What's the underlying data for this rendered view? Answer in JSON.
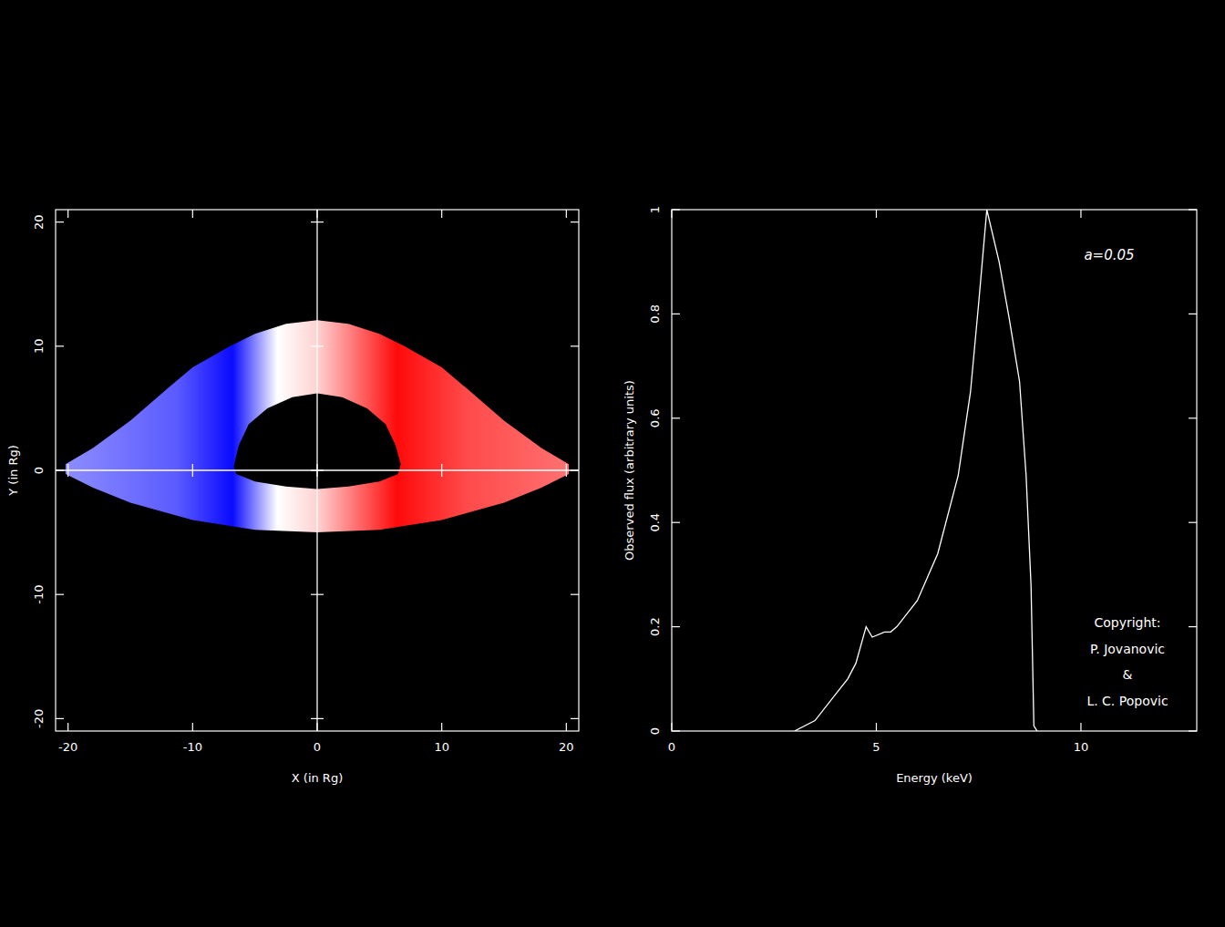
{
  "chart_data": [
    {
      "type": "image",
      "xlabel": "X (in Rg)",
      "ylabel": "Y (in Rg)",
      "xlim": [
        -21,
        21
      ],
      "ylim": [
        -21,
        21
      ],
      "xticks": [
        -20,
        -10,
        0,
        10,
        20
      ],
      "yticks": [
        -20,
        -10,
        0,
        10,
        20
      ],
      "disk": {
        "outer": {
          "x": [
            -20.2,
            -18,
            -15,
            -12,
            -10,
            -7,
            -5,
            -2.5,
            0,
            2.5,
            5,
            7,
            10,
            12,
            15,
            18,
            20.2,
            20.2,
            18,
            15,
            10,
            5,
            0,
            -5,
            -10,
            -15,
            -18,
            -20.2
          ],
          "y": [
            0.5,
            1.8,
            4,
            6.6,
            8.3,
            10,
            11,
            11.8,
            12.1,
            11.8,
            11,
            10,
            8.3,
            6.6,
            4,
            1.8,
            0.5,
            -0.3,
            -1.4,
            -2.6,
            -4,
            -4.8,
            -5,
            -4.8,
            -4,
            -2.6,
            -1.4,
            -0.3
          ]
        },
        "inner": {
          "x": [
            -6.7,
            -6.3,
            -5.5,
            -4,
            -2,
            0,
            2,
            4,
            5.5,
            6.3,
            6.7,
            6.5,
            5,
            2.5,
            0,
            -2.5,
            -5,
            -6.5
          ],
          "y": [
            0.3,
            2,
            3.7,
            5,
            5.9,
            6.2,
            5.9,
            5,
            3.7,
            2,
            0.5,
            -0.3,
            -0.9,
            -1.3,
            -1.5,
            -1.3,
            -0.9,
            -0.3
          ]
        }
      }
    },
    {
      "type": "line",
      "xlabel": "Energy (keV)",
      "ylabel": "Observed flux (arbitrary units)",
      "annotation": "a=0.05",
      "credits": [
        "Copyright:",
        "P. Jovanovic",
        "&",
        "L. C. Popovic"
      ],
      "xlim": [
        0,
        12.83
      ],
      "ylim": [
        0,
        1
      ],
      "xticks": [
        0,
        5,
        10
      ],
      "yticks": [
        0,
        0.2,
        0.4,
        0.6,
        0.8,
        1
      ],
      "color": "#ffffff",
      "x": [
        3.0,
        3.5,
        4.0,
        4.3,
        4.5,
        4.75,
        4.9,
        5.2,
        5.35,
        5.5,
        6.0,
        6.5,
        7.0,
        7.3,
        7.5,
        7.7,
        8.0,
        8.25,
        8.5,
        8.66,
        8.78,
        8.85,
        8.93
      ],
      "values": [
        0,
        0.02,
        0.07,
        0.1,
        0.13,
        0.2,
        0.18,
        0.19,
        0.19,
        0.2,
        0.25,
        0.34,
        0.49,
        0.65,
        0.82,
        1.0,
        0.9,
        0.79,
        0.67,
        0.49,
        0.28,
        0.01,
        0
      ]
    }
  ]
}
